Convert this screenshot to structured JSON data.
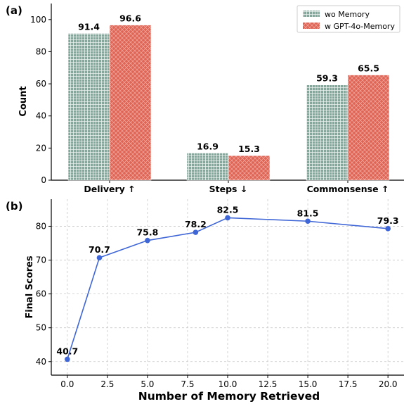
{
  "chart_data": [
    {
      "type": "bar",
      "panel_label": "(a)",
      "categories": [
        "Delivery ↑",
        "Steps ↓",
        "Commonsense ↑"
      ],
      "series": [
        {
          "name": "wo Memory",
          "values": [
            91.4,
            16.9,
            59.3
          ],
          "color": "#7fa99b"
        },
        {
          "name": "w GPT-4o-Memory",
          "values": [
            96.6,
            15.3,
            65.5
          ],
          "color": "#e06555"
        }
      ],
      "ylabel": "Count",
      "xlabel": "",
      "ylim": [
        0,
        110
      ],
      "yticks": [
        0,
        20,
        40,
        60,
        80,
        100
      ],
      "legend_position": "top-right",
      "grid": false
    },
    {
      "type": "line",
      "panel_label": "(b)",
      "x": [
        0,
        2,
        5,
        8,
        10,
        15,
        20
      ],
      "y": [
        40.7,
        70.7,
        75.8,
        78.2,
        82.5,
        81.5,
        79.3
      ],
      "xlabel": "Number of Memory Retrieved",
      "ylabel": "Final Scores",
      "xlim": [
        -1,
        21
      ],
      "ylim": [
        36,
        88
      ],
      "xticks": [
        "0.0",
        "2.5",
        "5.0",
        "7.5",
        "10.0",
        "12.5",
        "15.0",
        "17.5",
        "20.0"
      ],
      "yticks": [
        40,
        50,
        60,
        70,
        80
      ],
      "color": "#3f66d6",
      "grid": true
    }
  ]
}
